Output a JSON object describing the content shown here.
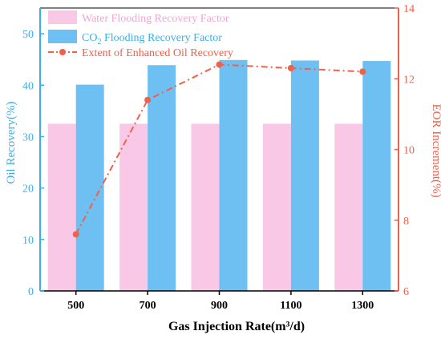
{
  "chart_data": {
    "type": "bar",
    "categories": [
      "500",
      "700",
      "900",
      "1100",
      "1300"
    ],
    "xlabel": "Gas Injection Rate(m³/d)",
    "ylabel_left": "Oil Recovery(%)",
    "ylabel_right": "EOR Increment(%)",
    "ylim_left": [
      0,
      55
    ],
    "ylim_right": [
      6,
      14
    ],
    "yticks_left": [
      "0",
      "10",
      "20",
      "30",
      "40",
      "50"
    ],
    "yticks_right": [
      "6",
      "8",
      "10",
      "12",
      "14"
    ],
    "series": [
      {
        "name": "Water Flooding Recovery Factor",
        "kind": "bar",
        "axis": "left",
        "color": "#f9c8e6",
        "values": [
          32.5,
          32.5,
          32.5,
          32.5,
          32.5
        ]
      },
      {
        "name_prefix": "CO",
        "name_sub": "2",
        "name_suffix": " Flooding Recovery Factor",
        "kind": "bar",
        "axis": "left",
        "color": "#6ec0f2",
        "values": [
          40.1,
          43.9,
          44.9,
          44.8,
          44.7
        ]
      },
      {
        "name": "Extent of Enhanced Oil Recovery",
        "kind": "line",
        "axis": "right",
        "color": "#f0604a",
        "values": [
          7.6,
          11.4,
          12.4,
          12.3,
          12.2
        ]
      }
    ],
    "left_axis_color": "#3aaee8",
    "right_axis_color": "#f0604a",
    "legend_placement": "top-left"
  }
}
